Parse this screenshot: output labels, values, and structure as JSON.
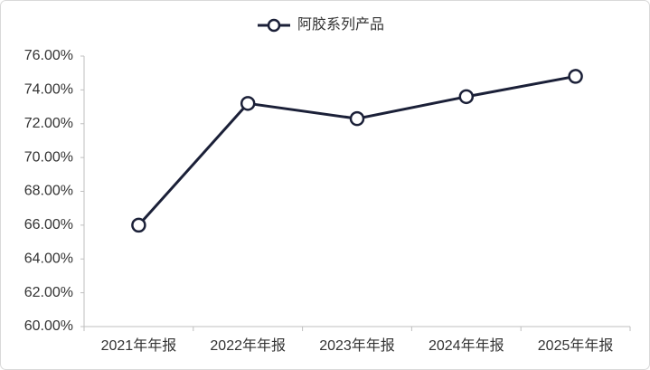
{
  "chart_data": {
    "type": "line",
    "categories": [
      "2021年年报",
      "2022年年报",
      "2023年年报",
      "2024年年报",
      "2025年年报"
    ],
    "series": [
      {
        "name": "阿胶系列产品",
        "color": "#1b2038",
        "values": [
          66.0,
          73.2,
          72.3,
          73.6,
          74.8
        ]
      }
    ],
    "ylim": [
      60,
      76
    ],
    "yticks": [
      {
        "value": 60,
        "label": "60.00%"
      },
      {
        "value": 62,
        "label": "62.00%"
      },
      {
        "value": 64,
        "label": "64.00%"
      },
      {
        "value": 66,
        "label": "66.00%"
      },
      {
        "value": 68,
        "label": "68.00%"
      },
      {
        "value": 70,
        "label": "70.00%"
      },
      {
        "value": 72,
        "label": "72.00%"
      },
      {
        "value": 74,
        "label": "74.00%"
      },
      {
        "value": 76,
        "label": "76.00%"
      }
    ],
    "grid": false,
    "legend": "top"
  }
}
